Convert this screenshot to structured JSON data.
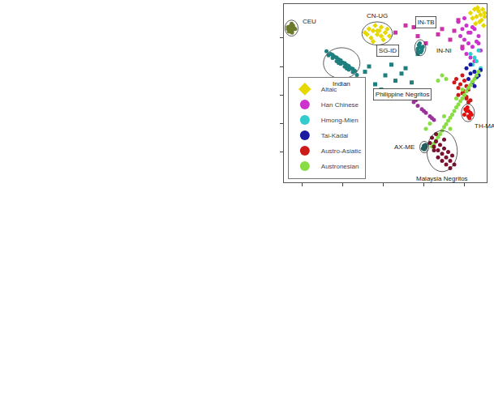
{
  "chart_data": {
    "type": "scatter",
    "xlim": [
      0,
      100
    ],
    "ylim": [
      0,
      100
    ],
    "xticks": [
      9,
      29,
      49,
      69,
      89
    ],
    "yticks": [
      17,
      33,
      49,
      65,
      81
    ],
    "tick_labels": false,
    "legend": "lower left",
    "series": [
      {
        "name": "Altaic",
        "color": "#e6d800",
        "marker": "diamond",
        "x": [
          92,
          94,
          95,
          96,
          97,
          98,
          99,
          93,
          95.5,
          97.5,
          99,
          96.5,
          94.5,
          98.5
        ],
        "y": [
          95,
          97,
          93,
          96,
          94,
          97,
          95,
          92,
          98,
          91,
          93,
          90,
          89,
          88
        ]
      },
      {
        "name": "Han Chinese",
        "color": "#cc33cc",
        "marker": "circle",
        "x": [
          86,
          88,
          90,
          92,
          94,
          96,
          89,
          91,
          93,
          95,
          97,
          87,
          90,
          92,
          94,
          88,
          91,
          93,
          96,
          89
        ],
        "y": [
          90,
          86,
          88,
          84,
          86,
          82,
          80,
          78,
          76,
          79,
          74,
          82,
          72,
          70,
          68,
          75,
          84,
          87,
          78,
          92
        ]
      },
      {
        "name": "Hmong-Mien",
        "color": "#33cccc",
        "marker": "circle",
        "x": [
          92,
          94,
          96,
          93,
          95,
          97,
          94,
          96
        ],
        "y": [
          72,
          70,
          74,
          66,
          68,
          64,
          62,
          60
        ]
      },
      {
        "name": "Tai-Kadai",
        "color": "#1a1aa0",
        "marker": "circle",
        "x": [
          90,
          92,
          94,
          96,
          91,
          93,
          95,
          97,
          92,
          94
        ],
        "y": [
          64,
          66,
          62,
          60,
          58,
          56,
          59,
          63,
          61,
          54
        ]
      },
      {
        "name": "Austro-Asiatic",
        "color": "#cc1a1a",
        "marker": "circle",
        "x": [
          85,
          87,
          89,
          91,
          88,
          90,
          86,
          92,
          88,
          90,
          84,
          86,
          89,
          91,
          90
        ],
        "y": [
          58,
          55,
          57,
          52,
          50,
          48,
          53,
          46,
          60,
          54,
          56,
          49,
          51,
          45,
          47
        ]
      },
      {
        "name": "Austronesian",
        "color": "#88dd44",
        "marker": "circle",
        "x": [
          95,
          93,
          91,
          89,
          87,
          85,
          83,
          81,
          79,
          77,
          75,
          73,
          94,
          90,
          86,
          82,
          78,
          74,
          92,
          88,
          84,
          80,
          76,
          96,
          88,
          85,
          82,
          79,
          70,
          72,
          78,
          80,
          76
        ],
        "y": [
          60,
          56.5,
          53,
          49,
          45.5,
          42,
          38,
          34.5,
          31,
          27,
          23.5,
          20,
          58,
          51,
          43.6,
          36.3,
          29,
          21.7,
          54.6,
          47,
          40,
          32.6,
          25.3,
          62,
          52,
          47,
          30,
          37,
          30,
          33,
          60,
          58,
          57
        ]
      }
    ],
    "labeled_groups": [
      {
        "name": "CEU",
        "color": "#6b7a2a",
        "marker": "circle",
        "x": [
          2,
          3,
          4,
          5,
          3.5,
          2.5,
          4.5,
          3,
          5.5,
          4,
          2,
          3.8
        ],
        "y": [
          86,
          87.5,
          85,
          86.5,
          87,
          84.5,
          88,
          85.5,
          86,
          84,
          87,
          89
        ]
      },
      {
        "name": "Indian",
        "color": "#1f7f7f",
        "marker": "circle",
        "x": [
          21,
          22,
          23,
          24,
          25,
          26,
          27,
          28,
          29,
          30,
          31,
          32,
          33,
          34,
          35,
          36,
          24,
          26,
          28,
          30,
          32,
          34,
          27,
          31
        ],
        "y": [
          73.5,
          71.2,
          72,
          69.8,
          70.5,
          68,
          69,
          66.5,
          67.2,
          64.9,
          65.8,
          63.2,
          64,
          61.8,
          62.5,
          60.2,
          71.5,
          70,
          68.4,
          66.8,
          65.2,
          63.6,
          66.9,
          63.9
        ]
      },
      {
        "name": "CN-UG",
        "color": "#e6d800",
        "marker": "diamond",
        "x": [
          40,
          42,
          44,
          46,
          48,
          50,
          52,
          43,
          45,
          47,
          49,
          51,
          44,
          48,
          46,
          41
        ],
        "y": [
          84,
          86,
          85,
          83,
          87,
          84,
          82,
          81,
          88,
          85,
          80,
          86,
          79,
          82,
          85,
          83
        ]
      },
      {
        "name": "SG-ID",
        "color": "#1f7f7f",
        "marker": "square",
        "x": [
          36,
          40,
          45,
          50,
          55,
          60,
          63,
          48,
          53,
          58,
          42,
          66
        ],
        "y": [
          58,
          62,
          55,
          60,
          57,
          64,
          56,
          52,
          66,
          61,
          65,
          72
        ]
      },
      {
        "name": "IN-TB",
        "color": "#cc33aa",
        "marker": "square",
        "x": [
          55,
          60,
          66,
          72,
          78,
          82,
          86,
          70,
          76,
          84,
          88,
          64
        ],
        "y": [
          84,
          88,
          82,
          90,
          86,
          80,
          91,
          78,
          83,
          85,
          76,
          87
        ]
      },
      {
        "name": "IN-NI",
        "color": "#1f7f7f",
        "marker": "circle",
        "x": [
          66,
          67,
          68,
          66.5,
          67.5,
          68.5,
          67,
          66,
          68
        ],
        "y": [
          74,
          76,
          75,
          77,
          73,
          76,
          78,
          75,
          74
        ]
      },
      {
        "name": "Philippine Negritos",
        "color": "#993399",
        "marker": "circle",
        "x": [
          62,
          64,
          66,
          68,
          70,
          72,
          74,
          65,
          69,
          73,
          60
        ],
        "y": [
          47,
          45,
          43,
          41,
          39,
          37,
          35,
          46,
          40,
          36,
          49
        ]
      },
      {
        "name": "TH-MA",
        "color": "#e01010",
        "marker": "circle",
        "x": [
          89,
          90,
          91,
          92,
          90.5,
          91.5,
          89.5,
          92.5,
          91
        ],
        "y": [
          38,
          40,
          37,
          39,
          42,
          36,
          41,
          38,
          40
        ]
      },
      {
        "name": "AX-ME",
        "color": "#1f5f5f",
        "marker": "circle",
        "x": [
          68.5,
          69,
          69.5,
          70,
          69.2,
          69.8
        ],
        "y": [
          19,
          20.5,
          19.5,
          20,
          18.5,
          21
        ]
      },
      {
        "name": "Malaysia Negritos",
        "color": "#7a1030",
        "marker": "circle",
        "x": [
          72,
          74,
          76,
          78,
          80,
          82,
          84,
          73,
          75,
          77,
          79,
          81,
          83,
          74,
          76,
          78,
          80,
          82,
          75,
          79
        ],
        "y": [
          22,
          20,
          18,
          16,
          14,
          12,
          10,
          25,
          23,
          21,
          19,
          17,
          15,
          18,
          14,
          12,
          10,
          8,
          27,
          24
        ]
      }
    ]
  }
}
